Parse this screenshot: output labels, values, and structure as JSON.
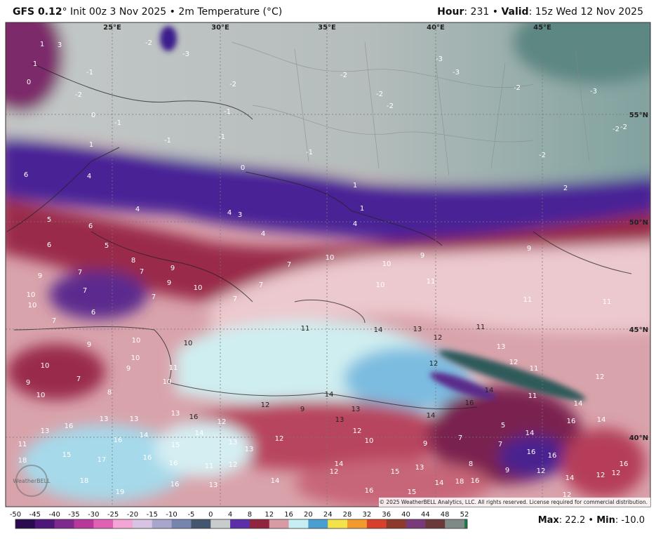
{
  "header": {
    "model": "GFS 0.12",
    "run": "° Init 00z 3 Nov 2025 • 2m Temperature (°C)",
    "hour_label": "Hour",
    "hour": ": 231 • ",
    "valid_label": "Valid",
    "valid": ": 15z Wed 12 Nov 2025"
  },
  "map": {
    "longitudes": [
      "25°E",
      "30°E",
      "35°E",
      "40°E",
      "45°E"
    ],
    "latitudes": [
      "55°N",
      "50°N",
      "45°N",
      "40°N"
    ],
    "labels": [
      "3",
      "-2",
      "-3",
      "-1",
      "-2",
      "0",
      "-1",
      "-1",
      "-1",
      "-1",
      "-2",
      "-2",
      "-2",
      "-2",
      "-3",
      "-3",
      "-2",
      "-3",
      "-2",
      "-2",
      "-1",
      "-2",
      "0",
      "1",
      "6",
      "4",
      "4",
      "4",
      "3",
      "4",
      "4",
      "1",
      "1",
      "2",
      "5",
      "6",
      "6",
      "5",
      "8",
      "7",
      "7",
      "9",
      "9",
      "10",
      "7",
      "10",
      "10",
      "9",
      "9",
      "10",
      "11",
      "7",
      "7",
      "7",
      "7",
      "9",
      "10",
      "10",
      "6",
      "7",
      "9",
      "10",
      "10",
      "10",
      "9",
      "11",
      "10",
      "10",
      "9",
      "7",
      "8",
      "10",
      "11",
      "14",
      "13",
      "11",
      "11",
      "11",
      "12",
      "13",
      "12",
      "11",
      "12",
      "12",
      "14",
      "11",
      "14",
      "14",
      "16",
      "14",
      "12",
      "9",
      "13",
      "13",
      "14",
      "16",
      "5",
      "14",
      "7",
      "7",
      "9",
      "10",
      "12",
      "12",
      "13",
      "13",
      "12",
      "13",
      "16",
      "14",
      "15",
      "14",
      "16",
      "13",
      "13",
      "16",
      "13",
      "11",
      "15",
      "17",
      "16",
      "18",
      "16",
      "11",
      "12",
      "14",
      "12",
      "15",
      "13",
      "8",
      "9",
      "16",
      "16",
      "12",
      "14",
      "12",
      "12",
      "16",
      "14",
      "13",
      "16",
      "18",
      "19",
      "16",
      "15",
      "14",
      "18",
      "16",
      "12",
      "1",
      "1",
      "0"
    ],
    "logo": "WeatherBELL",
    "copyright": "© 2025 WeatherBELL Analytics, LLC. All rights reserved. License required for commercial distribution."
  },
  "colorbar": {
    "ticks": [
      "-50",
      "-45",
      "-40",
      "-35",
      "-30",
      "-25",
      "-20",
      "-15",
      "-10",
      "-5",
      "0",
      "4",
      "8",
      "12",
      "16",
      "20",
      "24",
      "28",
      "32",
      "36",
      "40",
      "44",
      "48",
      "52"
    ]
  },
  "footer": {
    "max_label": "Max",
    "max": ": 22.2 • ",
    "min_label": "Min",
    "min": ": -10.0"
  }
}
